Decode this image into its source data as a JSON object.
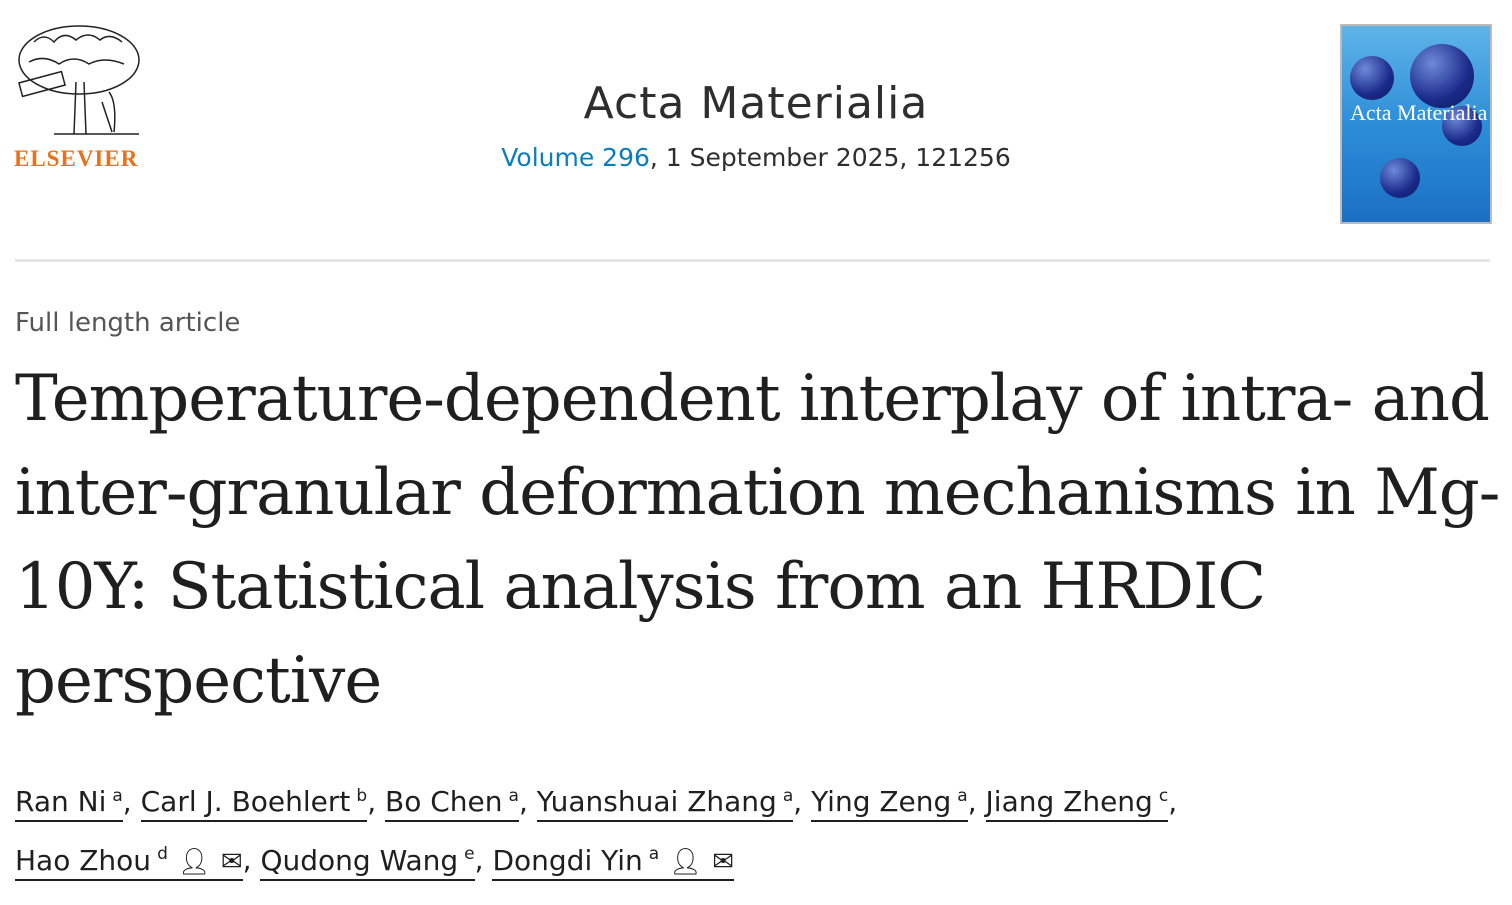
{
  "publisher": {
    "name": "ELSEVIER",
    "logo_motto": "NON SOLUS"
  },
  "journal": {
    "title": "Acta Materialia",
    "volume_link": "Volume 296",
    "info": ", 1 September 2025, 121256",
    "cover_title": "Acta Materialia"
  },
  "article": {
    "type": "Full length article",
    "title": "Temperature-dependent interplay of intra- and inter-granular deformation mechanisms in Mg-10Y: Statistical analysis from an HRDIC perspective"
  },
  "authors": [
    {
      "name": "Ran Ni",
      "aff": "a"
    },
    {
      "name": "Carl J. Boehlert",
      "aff": "b"
    },
    {
      "name": "Bo Chen",
      "aff": "a"
    },
    {
      "name": "Yuanshuai Zhang",
      "aff": "a"
    },
    {
      "name": "Ying Zeng",
      "aff": "a"
    },
    {
      "name": "Jiang Zheng",
      "aff": "c"
    },
    {
      "name": "Hao Zhou",
      "aff": "d",
      "icons": [
        "person-icon",
        "envelope-icon"
      ]
    },
    {
      "name": "Qudong Wang",
      "aff": "e"
    },
    {
      "name": "Dongdi Yin",
      "aff": "a",
      "icons": [
        "person-icon",
        "envelope-icon"
      ]
    }
  ],
  "separator": ", "
}
